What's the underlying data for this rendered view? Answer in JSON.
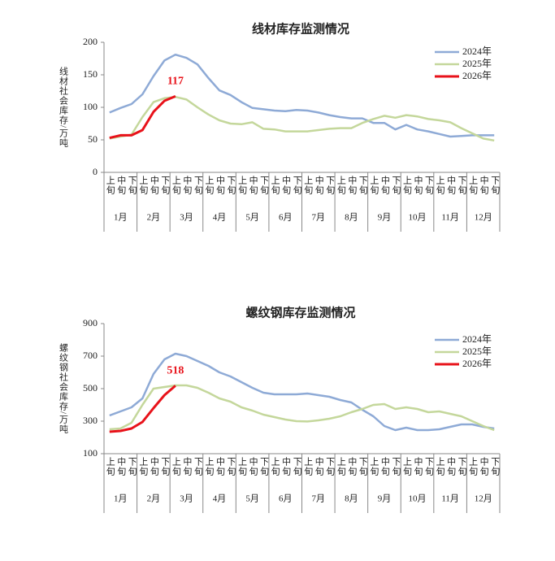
{
  "chart_data": [
    {
      "type": "line",
      "title": "线材库存监测情况",
      "y_label": "线材社会库存/万吨",
      "categories": [
        "上旬",
        "中旬",
        "下旬",
        "上旬",
        "中旬",
        "下旬",
        "上旬",
        "中旬",
        "下旬",
        "上旬",
        "中旬",
        "下旬",
        "上旬",
        "中旬",
        "下旬",
        "上旬",
        "中旬",
        "下旬",
        "上旬",
        "中旬",
        "下旬",
        "上旬",
        "中旬",
        "下旬",
        "上旬",
        "中旬",
        "下旬",
        "上旬",
        "中旬",
        "下旬",
        "上旬",
        "中旬",
        "下旬",
        "上旬",
        "中旬",
        "下旬"
      ],
      "months": [
        "1月",
        "2月",
        "3月",
        "4月",
        "5月",
        "6月",
        "7月",
        "8月",
        "9月",
        "10月",
        "11月",
        "12月"
      ],
      "ylim": [
        0,
        200
      ],
      "yticks": [
        0,
        50,
        100,
        150,
        200
      ],
      "grid": false,
      "legend": "upper right",
      "series": [
        {
          "name": "2024年",
          "color": "#8eaad6",
          "values": [
            92,
            99,
            105,
            120,
            148,
            172,
            181,
            176,
            166,
            145,
            126,
            119,
            108,
            99,
            97,
            95,
            94,
            96,
            95,
            92,
            88,
            85,
            83,
            83,
            76,
            76,
            66,
            73,
            66,
            63,
            59,
            55,
            56,
            57,
            57,
            57
          ]
        },
        {
          "name": "2025年",
          "color": "#c4d79b",
          "values": [
            52,
            55,
            58,
            85,
            108,
            114,
            116,
            112,
            100,
            89,
            80,
            75,
            74,
            77,
            67,
            66,
            63,
            63,
            63,
            65,
            67,
            68,
            68,
            76,
            82,
            87,
            84,
            88,
            86,
            82,
            80,
            77,
            68,
            60,
            52,
            49
          ]
        },
        {
          "name": "2026年",
          "color": "#e8121a",
          "values": [
            53,
            57,
            57,
            65,
            93,
            110,
            117,
            null,
            null,
            null,
            null,
            null,
            null,
            null,
            null,
            null,
            null,
            null,
            null,
            null,
            null,
            null,
            null,
            null,
            null,
            null,
            null,
            null,
            null,
            null,
            null,
            null,
            null,
            null,
            null,
            null
          ],
          "value_labels": [
            null,
            null,
            null,
            null,
            null,
            null,
            "117",
            null,
            null,
            null,
            null,
            null,
            null,
            null,
            null,
            null,
            null,
            null,
            null,
            null,
            null,
            null,
            null,
            null,
            null,
            null,
            null,
            null,
            null,
            null,
            null,
            null,
            null,
            null,
            null,
            null
          ]
        }
      ]
    },
    {
      "type": "line",
      "title": "螺纹钢库存监测情况",
      "y_label": "螺纹钢社会库存/万吨",
      "categories": [
        "上旬",
        "中旬",
        "下旬",
        "上旬",
        "中旬",
        "下旬",
        "上旬",
        "中旬",
        "下旬",
        "上旬",
        "中旬",
        "下旬",
        "上旬",
        "中旬",
        "下旬",
        "上旬",
        "中旬",
        "下旬",
        "上旬",
        "中旬",
        "下旬",
        "上旬",
        "中旬",
        "下旬",
        "上旬",
        "中旬",
        "下旬",
        "上旬",
        "中旬",
        "下旬",
        "上旬",
        "中旬",
        "下旬",
        "上旬",
        "中旬",
        "下旬"
      ],
      "months": [
        "1月",
        "2月",
        "3月",
        "4月",
        "5月",
        "6月",
        "7月",
        "8月",
        "9月",
        "10月",
        "11月",
        "12月"
      ],
      "ylim": [
        100,
        900
      ],
      "yticks": [
        100,
        300,
        500,
        700,
        900
      ],
      "grid": false,
      "legend": "upper right",
      "series": [
        {
          "name": "2024年",
          "color": "#8eaad6",
          "values": [
            335,
            360,
            385,
            440,
            590,
            680,
            715,
            700,
            670,
            640,
            600,
            575,
            540,
            505,
            475,
            465,
            465,
            465,
            470,
            460,
            450,
            430,
            415,
            370,
            330,
            270,
            245,
            260,
            245,
            245,
            250,
            265,
            280,
            280,
            265,
            255
          ]
        },
        {
          "name": "2025年",
          "color": "#c4d79b",
          "values": [
            250,
            255,
            290,
            400,
            500,
            510,
            520,
            520,
            505,
            475,
            440,
            420,
            385,
            365,
            340,
            325,
            310,
            300,
            298,
            305,
            315,
            330,
            355,
            375,
            400,
            405,
            375,
            385,
            375,
            355,
            360,
            345,
            330,
            300,
            270,
            245
          ]
        },
        {
          "name": "2026年",
          "color": "#e8121a",
          "values": [
            235,
            240,
            255,
            295,
            380,
            460,
            518,
            null,
            null,
            null,
            null,
            null,
            null,
            null,
            null,
            null,
            null,
            null,
            null,
            null,
            null,
            null,
            null,
            null,
            null,
            null,
            null,
            null,
            null,
            null,
            null,
            null,
            null,
            null,
            null,
            null
          ],
          "value_labels": [
            null,
            null,
            null,
            null,
            null,
            null,
            "518",
            null,
            null,
            null,
            null,
            null,
            null,
            null,
            null,
            null,
            null,
            null,
            null,
            null,
            null,
            null,
            null,
            null,
            null,
            null,
            null,
            null,
            null,
            null,
            null,
            null,
            null,
            null,
            null,
            null
          ]
        }
      ]
    }
  ]
}
